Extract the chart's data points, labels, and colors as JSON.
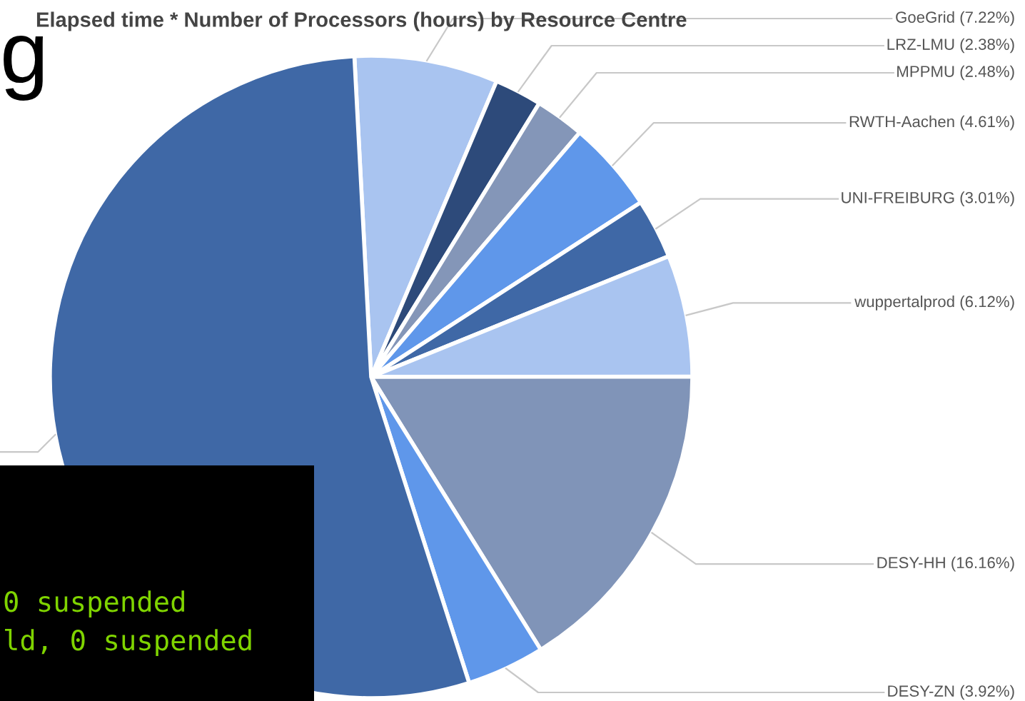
{
  "chart_data": {
    "type": "pie",
    "title": "Elapsed time * Number of Processors (hours) by Resource Centre",
    "categories": [
      "GoeGrid (7.22%)",
      "LRZ-LMU (2.38%)",
      "MPPMU (2.48%)",
      "RWTH-Aachen (4.61%)",
      "UNI-FREIBURG (3.01%)",
      "wuppertalprod (6.12%)",
      "DESY-HH (16.16%)",
      "DESY-ZN (3.92%)",
      null
    ],
    "values": [
      7.22,
      2.38,
      2.48,
      4.61,
      3.01,
      6.12,
      16.16,
      3.92,
      54.1
    ],
    "colors": [
      "#a9c4f0",
      "#2d4a7a",
      "#8496b8",
      "#5f97ea",
      "#3f68a6",
      "#a9c4f0",
      "#8094b8",
      "#5f97ea",
      "#3f68a6"
    ],
    "annotations": [
      "g",
      "0 suspended",
      "ld, 0 suspended"
    ]
  }
}
